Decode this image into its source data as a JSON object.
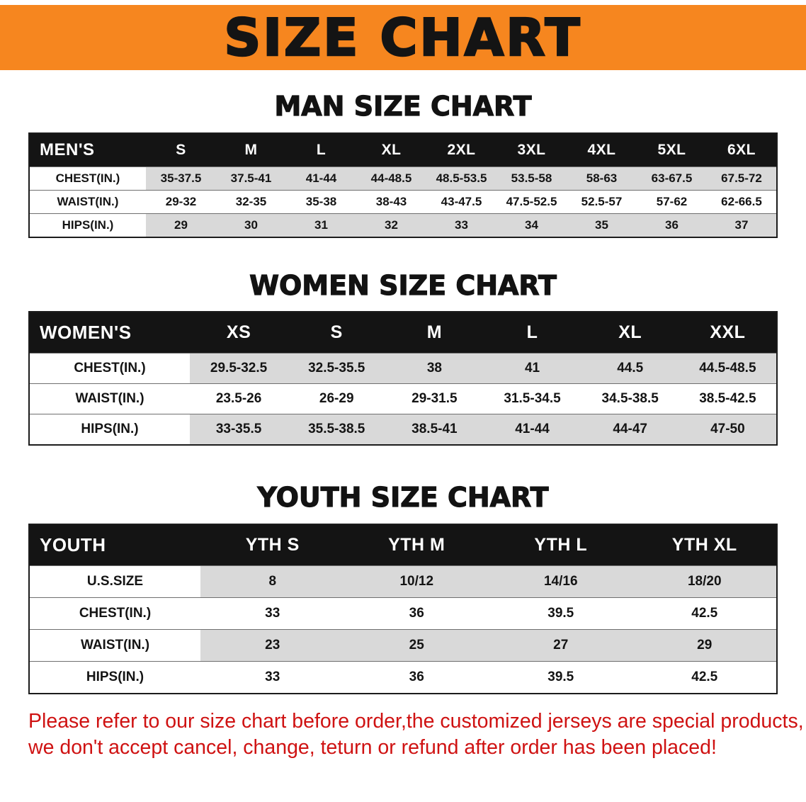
{
  "colors": {
    "banner_orange": "#F6861F",
    "table_header_black": "#141414",
    "row_stripe_gray": "#d9d9d9",
    "footer_red": "#cf1212"
  },
  "banner": {
    "title": "SIZE CHART"
  },
  "sections": [
    {
      "heading": "MAN SIZE CHART",
      "table": {
        "header": [
          "MEN'S",
          "S",
          "M",
          "L",
          "XL",
          "2XL",
          "3XL",
          "4XL",
          "5XL",
          "6XL"
        ],
        "rows": [
          {
            "label": "CHEST(IN.)",
            "values": [
              "35-37.5",
              "37.5-41",
              "41-44",
              "44-48.5",
              "48.5-53.5",
              "53.5-58",
              "58-63",
              "63-67.5",
              "67.5-72"
            ]
          },
          {
            "label": "WAIST(IN.)",
            "values": [
              "29-32",
              "32-35",
              "35-38",
              "38-43",
              "43-47.5",
              "47.5-52.5",
              "52.5-57",
              "57-62",
              "62-66.5"
            ]
          },
          {
            "label": "HIPS(IN.)",
            "values": [
              "29",
              "30",
              "31",
              "32",
              "33",
              "34",
              "35",
              "36",
              "37"
            ]
          }
        ]
      }
    },
    {
      "heading": "WOMEN SIZE CHART",
      "table": {
        "header": [
          "WOMEN'S",
          "XS",
          "S",
          "M",
          "L",
          "XL",
          "XXL"
        ],
        "rows": [
          {
            "label": "CHEST(IN.)",
            "values": [
              "29.5-32.5",
              "32.5-35.5",
              "38",
              "41",
              "44.5",
              "44.5-48.5"
            ]
          },
          {
            "label": "WAIST(IN.)",
            "values": [
              "23.5-26",
              "26-29",
              "29-31.5",
              "31.5-34.5",
              "34.5-38.5",
              "38.5-42.5"
            ]
          },
          {
            "label": "HIPS(IN.)",
            "values": [
              "33-35.5",
              "35.5-38.5",
              "38.5-41",
              "41-44",
              "44-47",
              "47-50"
            ]
          }
        ]
      }
    },
    {
      "heading": "YOUTH SIZE CHART",
      "table": {
        "header": [
          "YOUTH",
          "YTH S",
          "YTH M",
          "YTH L",
          "YTH XL"
        ],
        "rows": [
          {
            "label": "U.S.SIZE",
            "values": [
              "8",
              "10/12",
              "14/16",
              "18/20"
            ]
          },
          {
            "label": "CHEST(IN.)",
            "values": [
              "33",
              "36",
              "39.5",
              "42.5"
            ]
          },
          {
            "label": "WAIST(IN.)",
            "values": [
              "23",
              "25",
              "27",
              "29"
            ]
          },
          {
            "label": "HIPS(IN.)",
            "values": [
              "33",
              "36",
              "39.5",
              "42.5"
            ]
          }
        ]
      }
    }
  ],
  "footer": {
    "lines": [
      "Please refer to our size chart before order,the customized jerseys are special products,",
      "we don't accept cancel, change, teturn or refund after order has been placed!"
    ]
  }
}
